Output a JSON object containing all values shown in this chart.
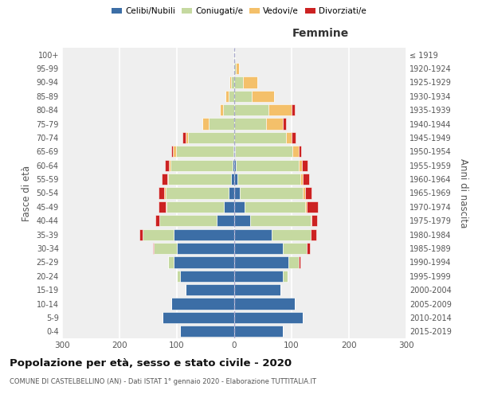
{
  "age_groups": [
    "0-4",
    "5-9",
    "10-14",
    "15-19",
    "20-24",
    "25-29",
    "30-34",
    "35-39",
    "40-44",
    "45-49",
    "50-54",
    "55-59",
    "60-64",
    "65-69",
    "70-74",
    "75-79",
    "80-84",
    "85-89",
    "90-94",
    "95-99",
    "100+"
  ],
  "birth_years": [
    "2015-2019",
    "2010-2014",
    "2005-2009",
    "2000-2004",
    "1995-1999",
    "1990-1994",
    "1985-1989",
    "1980-1984",
    "1975-1979",
    "1970-1974",
    "1965-1969",
    "1960-1964",
    "1955-1959",
    "1950-1954",
    "1945-1949",
    "1940-1944",
    "1935-1939",
    "1930-1934",
    "1925-1929",
    "1920-1924",
    "≤ 1919"
  ],
  "males": {
    "celibi": [
      95,
      125,
      110,
      85,
      95,
      105,
      100,
      105,
      30,
      18,
      10,
      5,
      3,
      2,
      0,
      0,
      0,
      0,
      0,
      0,
      0
    ],
    "coniugati": [
      0,
      0,
      0,
      0,
      5,
      10,
      40,
      55,
      100,
      100,
      110,
      110,
      108,
      100,
      80,
      45,
      20,
      10,
      5,
      2,
      1
    ],
    "vedovi": [
      0,
      0,
      0,
      0,
      0,
      0,
      0,
      0,
      0,
      2,
      2,
      2,
      3,
      5,
      5,
      10,
      5,
      5,
      3,
      0,
      0
    ],
    "divorziati": [
      0,
      0,
      0,
      0,
      0,
      0,
      2,
      5,
      8,
      12,
      10,
      10,
      7,
      3,
      5,
      0,
      0,
      0,
      0,
      0,
      0
    ]
  },
  "females": {
    "nubili": [
      85,
      120,
      105,
      80,
      85,
      95,
      85,
      65,
      28,
      18,
      10,
      5,
      3,
      2,
      0,
      0,
      0,
      0,
      0,
      0,
      0
    ],
    "coniugate": [
      0,
      0,
      0,
      0,
      8,
      18,
      42,
      68,
      105,
      105,
      110,
      110,
      110,
      100,
      90,
      55,
      60,
      30,
      15,
      3,
      1
    ],
    "vedove": [
      0,
      0,
      0,
      0,
      0,
      0,
      0,
      0,
      2,
      3,
      3,
      5,
      5,
      10,
      10,
      30,
      40,
      40,
      25,
      5,
      0
    ],
    "divorziate": [
      0,
      0,
      0,
      0,
      0,
      2,
      5,
      10,
      10,
      20,
      12,
      10,
      10,
      5,
      7,
      5,
      5,
      0,
      0,
      0,
      0
    ]
  },
  "color_celibi": "#3c6ea6",
  "color_coniugati": "#c5d9a0",
  "color_vedovi": "#f4c06a",
  "color_divorziati": "#cc2222",
  "title": "Popolazione per età, sesso e stato civile - 2020",
  "subtitle": "COMUNE DI CASTELBELLINO (AN) - Dati ISTAT 1° gennaio 2020 - Elaborazione TUTTITALIA.IT",
  "xlabel_right": "Femmine",
  "ylabel_left": "Fasce di età",
  "ylabel_right": "Anni di nascita",
  "xlim": 300,
  "bg_color": "#efefef"
}
